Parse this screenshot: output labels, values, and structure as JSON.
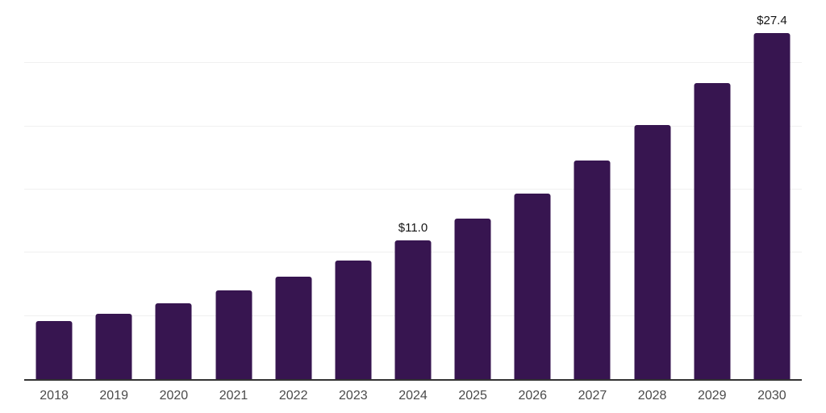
{
  "chart_data": {
    "type": "bar",
    "categories": [
      "2018",
      "2019",
      "2020",
      "2021",
      "2022",
      "2023",
      "2024",
      "2025",
      "2026",
      "2027",
      "2028",
      "2029",
      "2030"
    ],
    "values": [
      4.6,
      5.2,
      6.0,
      7.0,
      8.1,
      9.4,
      11.0,
      12.7,
      14.7,
      17.3,
      20.1,
      23.4,
      27.4
    ],
    "point_labels": {
      "2024": "$11.0",
      "2030": "$27.4"
    },
    "ylim": [
      0,
      30
    ],
    "gridline_step": 5,
    "grid": "horizontal",
    "legend": "none",
    "colors": {
      "bar": "#371550",
      "gridline": "#f0f0f0",
      "axis_line": "#333333",
      "tick_label": "#4a4a4a",
      "data_label": "#141414",
      "background": "#ffffff"
    }
  }
}
